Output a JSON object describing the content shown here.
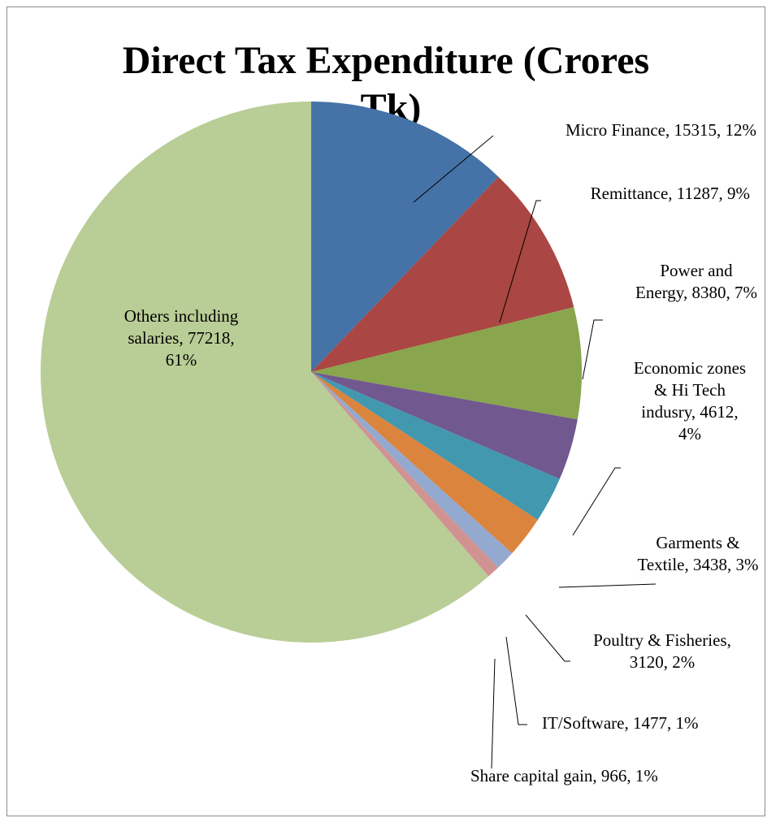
{
  "chart_data": {
    "type": "pie",
    "title_lines": [
      "Direct Tax Expenditure  (Crores",
      "Tk)"
    ],
    "start_angle_deg": 0,
    "direction": "clockwise",
    "slices": [
      {
        "label_lines": [
          "Micro Finance, 15315, 12%"
        ],
        "category": "Micro Finance",
        "value": 15315,
        "percent": "12%",
        "color": "#4572A7"
      },
      {
        "label_lines": [
          "Remittance, 11287, 9%"
        ],
        "category": "Remittance",
        "value": 11287,
        "percent": "9%",
        "color": "#AA4643"
      },
      {
        "label_lines": [
          "Power and",
          "Energy, 8380, 7%"
        ],
        "category": "Power and Energy",
        "value": 8380,
        "percent": "7%",
        "color": "#89A54E"
      },
      {
        "label_lines": [
          "Economic zones",
          "& Hi Tech",
          "indusry, 4612,",
          "4%"
        ],
        "category": "Economic zones & Hi Tech indusry",
        "value": 4612,
        "percent": "4%",
        "color": "#71588F"
      },
      {
        "label_lines": [
          "Garments &",
          "Textile, 3438, 3%"
        ],
        "category": "Garments & Textile",
        "value": 3438,
        "percent": "3%",
        "color": "#4198AF"
      },
      {
        "label_lines": [
          "Poultry & Fisheries,",
          "3120, 2%"
        ],
        "category": "Poultry & Fisheries",
        "value": 3120,
        "percent": "2%",
        "color": "#DB843D"
      },
      {
        "label_lines": [
          "IT/Software, 1477, 1%"
        ],
        "category": "IT/Software",
        "value": 1477,
        "percent": "1%",
        "color": "#93A9CF"
      },
      {
        "label_lines": [
          "Share capital gain, 966, 1%"
        ],
        "category": "Share capital gain",
        "value": 966,
        "percent": "1%",
        "color": "#D19392"
      },
      {
        "label_lines": [
          "Others including",
          "salaries, 77218,",
          "61%"
        ],
        "category": "Others including salaries",
        "value": 77218,
        "percent": "61%",
        "color": "#B9CD96"
      }
    ]
  }
}
